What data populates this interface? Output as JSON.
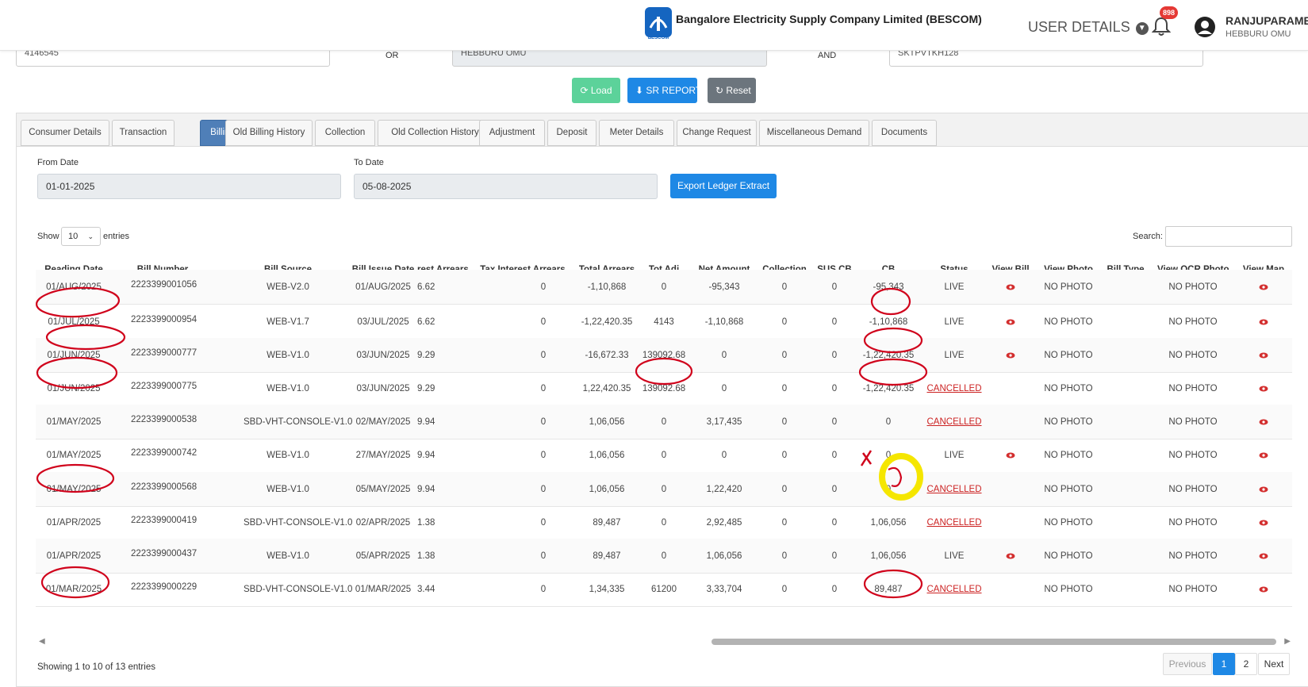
{
  "header": {
    "logo_text": "BESCOM",
    "company": "Bangalore Electricity Supply Company Limited (BESCOM)",
    "user_details": "USER DETAILS",
    "notification_count": "898",
    "user_name": "RANJUPARAME",
    "user_location": "HEBBURU OMU"
  },
  "search_row": {
    "field1": "4146545",
    "or_label": "OR",
    "field2": "HEBBURU OMU",
    "and_label": "AND",
    "field3": "SKTPVTKH128"
  },
  "actions": {
    "load": "Load",
    "sr_report": "SR REPORT",
    "reset": "Reset"
  },
  "tabs": [
    {
      "label": "Consumer Details"
    },
    {
      "label": "Transaction"
    },
    {
      "label": "Billing"
    },
    {
      "label": "Old Billing History"
    },
    {
      "label": "Collection"
    },
    {
      "label": "Old Collection History"
    },
    {
      "label": "Adjustment"
    },
    {
      "label": "Deposit"
    },
    {
      "label": "Meter Details"
    },
    {
      "label": "Change Request"
    },
    {
      "label": "Miscellaneous Demand"
    },
    {
      "label": "Documents"
    }
  ],
  "filters": {
    "from_label": "From Date",
    "from_value": "01-01-2025",
    "to_label": "To Date",
    "to_value": "05-08-2025",
    "export_label": "Export Ledger Extract"
  },
  "table_controls": {
    "show": "Show",
    "page_size": "10",
    "entries": "entries",
    "search": "Search:"
  },
  "columns": [
    "Reading Date",
    "Bill Number",
    "Bill Source",
    "Bill Issue Date",
    "rest Arrears",
    "Tax Interest Arrears",
    "Total Arrears",
    "Tot Adj",
    "Net Amount",
    "Collection",
    "SUS CB",
    "CB",
    "Status",
    "View Bill",
    "View Photo",
    "Bill Type",
    "View OCR Photo",
    "View Map"
  ],
  "rows": [
    {
      "reading_date": "01/AUG/2025",
      "bill_number": "2223399001056",
      "bill_source": "WEB-V2.0",
      "issue_date": "01/AUG/2025",
      "rest_arrears": "6.62",
      "tax_interest": "0",
      "total_arrears": "-1,10,868",
      "tot_adj": "0",
      "net_amount": "-95,343",
      "collection": "0",
      "sus_cb": "0",
      "cb": "-95,343",
      "status": "LIVE",
      "photo": "NO PHOTO",
      "ocr_photo": "NO PHOTO"
    },
    {
      "reading_date": "01/JUL/2025",
      "bill_number": "2223399000954",
      "bill_source": "WEB-V1.7",
      "issue_date": "03/JUL/2025",
      "rest_arrears": "6.62",
      "tax_interest": "0",
      "total_arrears": "-1,22,420.35",
      "tot_adj": "4143",
      "net_amount": "-1,10,868",
      "collection": "0",
      "sus_cb": "0",
      "cb": "-1,10,868",
      "status": "LIVE",
      "photo": "NO PHOTO",
      "ocr_photo": "NO PHOTO"
    },
    {
      "reading_date": "01/JUN/2025",
      "bill_number": "2223399000777",
      "bill_source": "WEB-V1.0",
      "issue_date": "03/JUN/2025",
      "rest_arrears": "9.29",
      "tax_interest": "0",
      "total_arrears": "-16,672.33",
      "tot_adj": "139092.68",
      "net_amount": "0",
      "collection": "0",
      "sus_cb": "0",
      "cb": "-1,22,420.35",
      "status": "LIVE",
      "photo": "NO PHOTO",
      "ocr_photo": "NO PHOTO"
    },
    {
      "reading_date": "01/JUN/2025",
      "bill_number": "2223399000775",
      "bill_source": "WEB-V1.0",
      "issue_date": "03/JUN/2025",
      "rest_arrears": "9.29",
      "tax_interest": "0",
      "total_arrears": "1,22,420.35",
      "tot_adj": "139092.68",
      "net_amount": "0",
      "collection": "0",
      "sus_cb": "0",
      "cb": "-1,22,420.35",
      "status": "CANCELLED",
      "photo": "NO PHOTO",
      "ocr_photo": "NO PHOTO"
    },
    {
      "reading_date": "01/MAY/2025",
      "bill_number": "2223399000538",
      "bill_source": "SBD-VHT-CONSOLE-V1.0",
      "issue_date": "02/MAY/2025",
      "rest_arrears": "9.94",
      "tax_interest": "0",
      "total_arrears": "1,06,056",
      "tot_adj": "0",
      "net_amount": "3,17,435",
      "collection": "0",
      "sus_cb": "0",
      "cb": "0",
      "status": "CANCELLED",
      "photo": "NO PHOTO",
      "ocr_photo": "NO PHOTO"
    },
    {
      "reading_date": "01/MAY/2025",
      "bill_number": "2223399000742",
      "bill_source": "WEB-V1.0",
      "issue_date": "27/MAY/2025",
      "rest_arrears": "9.94",
      "tax_interest": "0",
      "total_arrears": "1,06,056",
      "tot_adj": "0",
      "net_amount": "0",
      "collection": "0",
      "sus_cb": "0",
      "cb": "0",
      "status": "LIVE",
      "photo": "NO PHOTO",
      "ocr_photo": "NO PHOTO"
    },
    {
      "reading_date": "01/MAY/2025",
      "bill_number": "2223399000568",
      "bill_source": "WEB-V1.0",
      "issue_date": "05/MAY/2025",
      "rest_arrears": "9.94",
      "tax_interest": "0",
      "total_arrears": "1,06,056",
      "tot_adj": "0",
      "net_amount": "1,22,420",
      "collection": "0",
      "sus_cb": "0",
      "cb": "0",
      "status": "CANCELLED",
      "photo": "NO PHOTO",
      "ocr_photo": "NO PHOTO"
    },
    {
      "reading_date": "01/APR/2025",
      "bill_number": "2223399000419",
      "bill_source": "SBD-VHT-CONSOLE-V1.0",
      "issue_date": "02/APR/2025",
      "rest_arrears": "1.38",
      "tax_interest": "0",
      "total_arrears": "89,487",
      "tot_adj": "0",
      "net_amount": "2,92,485",
      "collection": "0",
      "sus_cb": "0",
      "cb": "1,06,056",
      "status": "CANCELLED",
      "photo": "NO PHOTO",
      "ocr_photo": "NO PHOTO"
    },
    {
      "reading_date": "01/APR/2025",
      "bill_number": "2223399000437",
      "bill_source": "WEB-V1.0",
      "issue_date": "05/APR/2025",
      "rest_arrears": "1.38",
      "tax_interest": "0",
      "total_arrears": "89,487",
      "tot_adj": "0",
      "net_amount": "1,06,056",
      "collection": "0",
      "sus_cb": "0",
      "cb": "1,06,056",
      "status": "LIVE",
      "photo": "NO PHOTO",
      "ocr_photo": "NO PHOTO"
    },
    {
      "reading_date": "01/MAR/2025",
      "bill_number": "2223399000229",
      "bill_source": "SBD-VHT-CONSOLE-V1.0",
      "issue_date": "01/MAR/2025",
      "rest_arrears": "3.44",
      "tax_interest": "0",
      "total_arrears": "1,34,335",
      "tot_adj": "61200",
      "net_amount": "3,33,704",
      "collection": "0",
      "sus_cb": "0",
      "cb": "89,487",
      "status": "CANCELLED",
      "photo": "NO PHOTO",
      "ocr_photo": "NO PHOTO"
    }
  ],
  "pagination": {
    "info": "Showing 1 to 10 of 13 entries",
    "previous": "Previous",
    "page1": "1",
    "page2": "2",
    "next": "Next"
  },
  "colors": {
    "primary": "#1e88e5",
    "success": "#5cd29a",
    "secondary": "#6c757d",
    "active_tab": "#4f7fb8",
    "cancelled": "#cc2222",
    "annotation_red": "#d0021b",
    "annotation_yellow": "#f5e600"
  }
}
